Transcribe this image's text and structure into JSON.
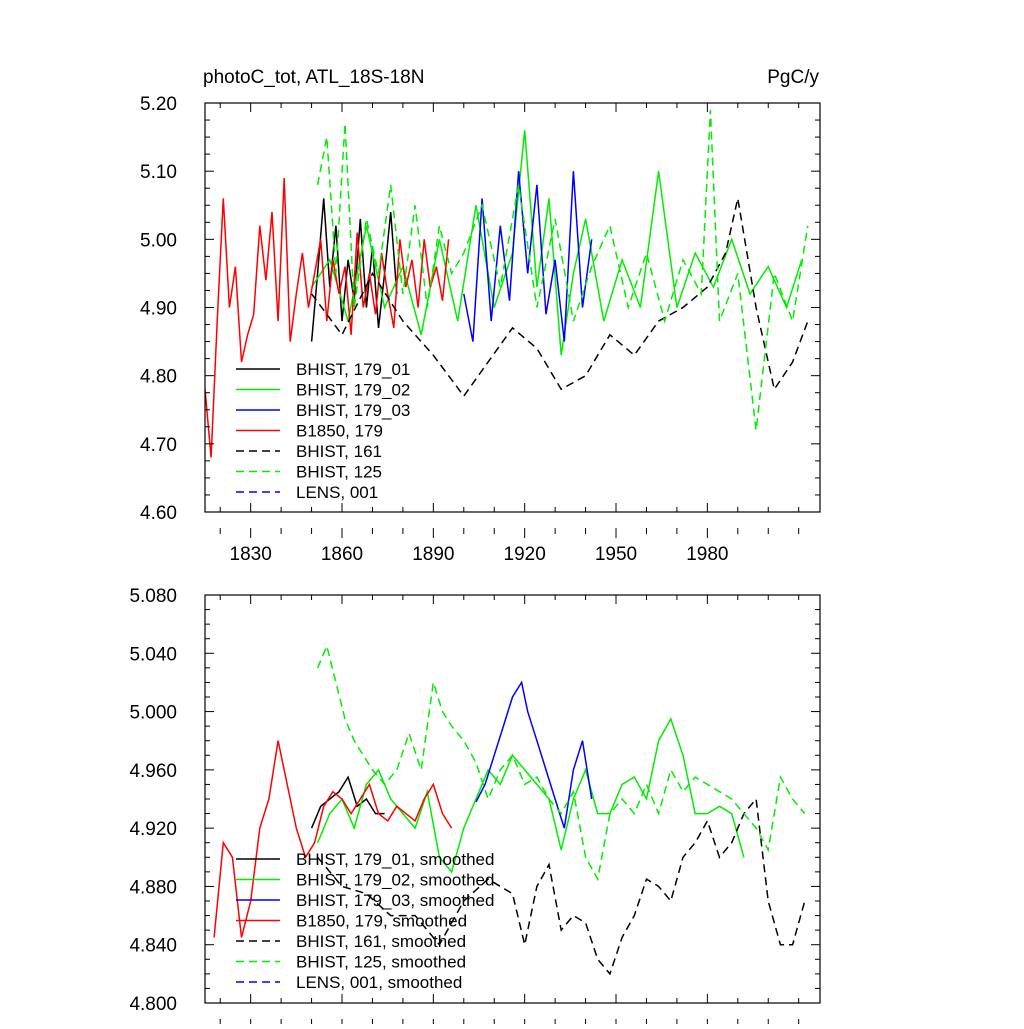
{
  "chart_data": [
    {
      "type": "line",
      "title_left": "photoC_tot, ATL_18S-18N",
      "title_right": "PgC/y",
      "xlim": [
        1815,
        2017
      ],
      "ylim": [
        4.6,
        5.2
      ],
      "xticks": [
        1830,
        1860,
        1890,
        1920,
        1950,
        1980
      ],
      "xtick_labels": [
        "1830",
        "1860",
        "1890",
        "1920",
        "1950",
        "1980"
      ],
      "yticks": [
        4.6,
        4.7,
        4.8,
        4.9,
        5.0,
        5.1,
        5.2
      ],
      "ytick_labels": [
        "4.60",
        "4.70",
        "4.80",
        "4.90",
        "5.00",
        "5.10",
        "5.20"
      ],
      "legend_position": "bottom-left",
      "series": [
        {
          "name": "BHIST, 179_01",
          "color": "#000000",
          "dash": "solid",
          "x": [
            1850,
            1852,
            1854,
            1856,
            1858,
            1860,
            1862,
            1864,
            1866,
            1868,
            1870,
            1872,
            1874,
            1876,
            1878
          ],
          "y": [
            4.85,
            4.95,
            5.06,
            4.93,
            5.02,
            4.88,
            4.97,
            4.91,
            5.03,
            4.9,
            4.99,
            4.87,
            4.95,
            5.04,
            4.92
          ]
        },
        {
          "name": "BHIST, 179_02",
          "color": "#00ee00",
          "dash": "solid",
          "x": [
            1850,
            1856,
            1862,
            1868,
            1874,
            1880,
            1886,
            1892,
            1898,
            1904,
            1910,
            1916,
            1920,
            1924,
            1928,
            1932,
            1936,
            1940,
            1946,
            1952,
            1958,
            1964,
            1970,
            1976,
            1982,
            1988,
            1994,
            2000,
            2006,
            2011
          ],
          "y": [
            4.93,
            4.97,
            4.88,
            5.02,
            4.9,
            4.96,
            4.86,
            5.0,
            4.88,
            5.05,
            4.9,
            4.98,
            5.16,
            4.93,
            5.06,
            4.83,
            4.95,
            5.03,
            4.88,
            4.97,
            4.9,
            5.1,
            4.9,
            4.98,
            4.93,
            5.0,
            4.92,
            4.96,
            4.9,
            4.97
          ]
        },
        {
          "name": "BHIST, 179_03",
          "color": "#0000ff",
          "dash": "solid",
          "x": [
            1900,
            1903,
            1906,
            1909,
            1912,
            1915,
            1918,
            1921,
            1924,
            1927,
            1930,
            1933,
            1936,
            1939,
            1942
          ],
          "y": [
            4.92,
            4.85,
            5.06,
            4.88,
            5.02,
            4.91,
            5.1,
            4.95,
            5.08,
            4.89,
            4.97,
            4.85,
            5.1,
            4.9,
            5.0
          ]
        },
        {
          "name": "B1850, 179",
          "color": "#ff0000",
          "dash": "solid",
          "x": [
            1815,
            1817,
            1819,
            1821,
            1823,
            1825,
            1827,
            1829,
            1831,
            1833,
            1835,
            1837,
            1839,
            1841,
            1843,
            1845,
            1847,
            1849,
            1851,
            1853,
            1855,
            1857,
            1859,
            1861,
            1863,
            1865,
            1867,
            1869,
            1871,
            1873,
            1875,
            1877,
            1879,
            1881,
            1883,
            1885,
            1887,
            1889,
            1891,
            1893,
            1895
          ],
          "y": [
            4.78,
            4.68,
            4.88,
            5.06,
            4.9,
            4.96,
            4.82,
            4.86,
            4.89,
            5.02,
            4.94,
            5.04,
            4.88,
            5.09,
            4.85,
            4.92,
            4.98,
            4.9,
            4.95,
            5.0,
            4.88,
            4.97,
            4.92,
            4.96,
            4.86,
            5.01,
            4.9,
            4.95,
            4.89,
            4.98,
            4.92,
            4.87,
            5.0,
            4.93,
            4.97,
            4.9,
            5.0,
            4.93,
            4.96,
            4.91,
            5.0
          ]
        },
        {
          "name": "BHIST, 161",
          "color": "#000000",
          "dash": "dashed",
          "x": [
            1850,
            1860,
            1870,
            1880,
            1890,
            1900,
            1908,
            1916,
            1924,
            1932,
            1940,
            1948,
            1956,
            1964,
            1972,
            1980,
            1986,
            1990,
            1996,
            2002,
            2008,
            2013
          ],
          "y": [
            4.92,
            4.86,
            4.95,
            4.88,
            4.83,
            4.77,
            4.82,
            4.87,
            4.84,
            4.78,
            4.8,
            4.86,
            4.83,
            4.88,
            4.9,
            4.93,
            4.98,
            5.06,
            4.9,
            4.78,
            4.82,
            4.88
          ]
        },
        {
          "name": "BHIST, 125",
          "color": "#00ee00",
          "dash": "dashed",
          "x": [
            1852,
            1855,
            1858,
            1861,
            1864,
            1868,
            1872,
            1876,
            1880,
            1884,
            1888,
            1892,
            1896,
            1900,
            1906,
            1912,
            1918,
            1924,
            1930,
            1936,
            1942,
            1948,
            1954,
            1960,
            1966,
            1972,
            1978,
            1981,
            1984,
            1990,
            1996,
            2002,
            2008,
            2013
          ],
          "y": [
            5.08,
            5.15,
            4.95,
            5.17,
            4.9,
            5.03,
            4.95,
            5.08,
            4.92,
            5.05,
            4.9,
            5.02,
            4.95,
            4.98,
            5.05,
            4.93,
            5.08,
            4.9,
            5.03,
            4.88,
            4.96,
            5.02,
            4.9,
            4.98,
            4.88,
            4.97,
            4.92,
            5.19,
            4.88,
            4.95,
            4.72,
            4.95,
            4.88,
            5.02
          ]
        },
        {
          "name": "LENS, 001",
          "color": "#0000ff",
          "dash": "dashed",
          "x": [],
          "y": []
        }
      ]
    },
    {
      "type": "line",
      "title_left": "",
      "title_right": "",
      "xlim": [
        1815,
        2017
      ],
      "ylim": [
        4.8,
        5.08
      ],
      "xticks": [
        1830,
        1860,
        1890,
        1920,
        1950,
        1980
      ],
      "xtick_labels": [
        "",
        "",
        "",
        "",
        "",
        ""
      ],
      "yticks": [
        4.8,
        4.84,
        4.88,
        4.92,
        4.96,
        5.0,
        5.04,
        5.08
      ],
      "ytick_labels": [
        "4.800",
        "4.840",
        "4.880",
        "4.920",
        "4.960",
        "5.000",
        "5.040",
        "5.080"
      ],
      "legend_position": "bottom-left",
      "series": [
        {
          "name": "BHIST, 179_01, smoothed",
          "color": "#000000",
          "dash": "solid",
          "x": [
            1850,
            1853,
            1856,
            1859,
            1862,
            1865,
            1868,
            1871,
            1874
          ],
          "y": [
            4.92,
            4.935,
            4.94,
            4.945,
            4.955,
            4.935,
            4.94,
            4.93,
            4.93
          ]
        },
        {
          "name": "BHIST, 179_02, smoothed",
          "color": "#00ee00",
          "dash": "solid",
          "x": [
            1852,
            1856,
            1860,
            1864,
            1868,
            1872,
            1876,
            1880,
            1884,
            1888,
            1892,
            1896,
            1900,
            1904,
            1908,
            1912,
            1916,
            1920,
            1924,
            1928,
            1932,
            1936,
            1940,
            1944,
            1948,
            1952,
            1956,
            1960,
            1964,
            1968,
            1972,
            1976,
            1980,
            1984,
            1988,
            1992
          ],
          "y": [
            4.91,
            4.93,
            4.94,
            4.92,
            4.95,
            4.96,
            4.94,
            4.93,
            4.92,
            4.945,
            4.9,
            4.89,
            4.92,
            4.94,
            4.96,
            4.95,
            4.97,
            4.96,
            4.95,
            4.94,
            4.905,
            4.94,
            4.96,
            4.93,
            4.93,
            4.95,
            4.955,
            4.94,
            4.98,
            4.995,
            4.97,
            4.93,
            4.93,
            4.935,
            4.93,
            4.9
          ]
        },
        {
          "name": "BHIST, 179_03, smoothed",
          "color": "#0000ff",
          "dash": "solid",
          "x": [
            1904,
            1907,
            1910,
            1913,
            1916,
            1919,
            1921,
            1924,
            1927,
            1930,
            1933,
            1936,
            1939,
            1942
          ],
          "y": [
            4.938,
            4.95,
            4.97,
            4.99,
            5.01,
            5.02,
            5.0,
            4.98,
            4.96,
            4.94,
            4.92,
            4.96,
            4.98,
            4.94
          ]
        },
        {
          "name": "B1850, 179, smoothed",
          "color": "#ff0000",
          "dash": "solid",
          "x": [
            1818,
            1821,
            1824,
            1827,
            1830,
            1833,
            1836,
            1839,
            1842,
            1845,
            1848,
            1851,
            1854,
            1857,
            1860,
            1863,
            1866,
            1869,
            1872,
            1875,
            1878,
            1881,
            1884,
            1887,
            1890,
            1893,
            1896
          ],
          "y": [
            4.845,
            4.91,
            4.9,
            4.845,
            4.87,
            4.92,
            4.94,
            4.98,
            4.95,
            4.92,
            4.9,
            4.91,
            4.935,
            4.945,
            4.94,
            4.93,
            4.94,
            4.95,
            4.93,
            4.925,
            4.935,
            4.93,
            4.925,
            4.94,
            4.95,
            4.93,
            4.92
          ]
        },
        {
          "name": "BHIST, 161, smoothed",
          "color": "#000000",
          "dash": "dashed",
          "x": [
            1852,
            1860,
            1868,
            1876,
            1884,
            1892,
            1900,
            1908,
            1916,
            1920,
            1924,
            1928,
            1932,
            1936,
            1940,
            1944,
            1948,
            1952,
            1956,
            1960,
            1964,
            1968,
            1972,
            1976,
            1980,
            1984,
            1988,
            1992,
            1996,
            2000,
            2004,
            2008,
            2012
          ],
          "y": [
            4.9,
            4.88,
            4.875,
            4.86,
            4.86,
            4.84,
            4.87,
            4.885,
            4.875,
            4.84,
            4.88,
            4.895,
            4.85,
            4.86,
            4.855,
            4.83,
            4.82,
            4.845,
            4.86,
            4.885,
            4.88,
            4.87,
            4.9,
            4.91,
            4.925,
            4.9,
            4.91,
            4.93,
            4.94,
            4.87,
            4.84,
            4.84,
            4.87
          ]
        },
        {
          "name": "BHIST, 125, smoothed",
          "color": "#00ee00",
          "dash": "dashed",
          "x": [
            1852,
            1855,
            1858,
            1861,
            1864,
            1867,
            1870,
            1874,
            1878,
            1882,
            1886,
            1890,
            1893,
            1896,
            1900,
            1904,
            1908,
            1912,
            1916,
            1920,
            1924,
            1928,
            1932,
            1936,
            1940,
            1944,
            1948,
            1952,
            1956,
            1960,
            1964,
            1968,
            1972,
            1976,
            1980,
            1984,
            1988,
            1992,
            1996,
            2000,
            2004,
            2008,
            2012
          ],
          "y": [
            5.03,
            5.045,
            5.02,
            4.995,
            4.98,
            4.97,
            4.96,
            4.95,
            4.96,
            4.985,
            4.96,
            5.02,
            5.0,
            4.99,
            4.98,
            4.965,
            4.94,
            4.96,
            4.97,
            4.95,
            4.955,
            4.94,
            4.93,
            4.945,
            4.9,
            4.885,
            4.93,
            4.94,
            4.93,
            4.95,
            4.93,
            4.96,
            4.945,
            4.955,
            4.95,
            4.945,
            4.94,
            4.93,
            4.92,
            4.905,
            4.955,
            4.94,
            4.93
          ]
        },
        {
          "name": "LENS, 001, smoothed",
          "color": "#0000ff",
          "dash": "dashed",
          "x": [],
          "y": []
        }
      ]
    }
  ]
}
